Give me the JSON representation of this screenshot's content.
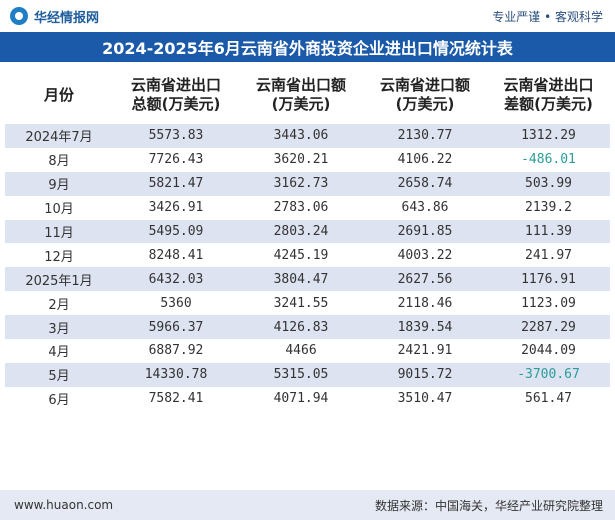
{
  "header": {
    "brand_name": "华经情报网",
    "slogan": "专业严谨 • 客观科学",
    "title": "2024-2025年6月云南省外商投资企业进出口情况统计表"
  },
  "table": {
    "columns": [
      "月份",
      "云南省进出口\n总额(万美元)",
      "云南省出口额\n(万美元)",
      "云南省进口额\n(万美元)",
      "云南省进出口\n差额(万美元)"
    ],
    "rows": [
      [
        "2024年7月",
        "5573.83",
        "3443.06",
        "2130.77",
        "1312.29"
      ],
      [
        "8月",
        "7726.43",
        "3620.21",
        "4106.22",
        "-486.01"
      ],
      [
        "9月",
        "5821.47",
        "3162.73",
        "2658.74",
        "503.99"
      ],
      [
        "10月",
        "3426.91",
        "2783.06",
        "643.86",
        "2139.2"
      ],
      [
        "11月",
        "5495.09",
        "2803.24",
        "2691.85",
        "111.39"
      ],
      [
        "12月",
        "8248.41",
        "4245.19",
        "4003.22",
        "241.97"
      ],
      [
        "2025年1月",
        "6432.03",
        "3804.47",
        "2627.56",
        "1176.91"
      ],
      [
        "2月",
        "5360",
        "3241.55",
        "2118.46",
        "1123.09"
      ],
      [
        "3月",
        "5966.37",
        "4126.83",
        "1839.54",
        "2287.29"
      ],
      [
        "4月",
        "6887.92",
        "4466",
        "2421.91",
        "2044.09"
      ],
      [
        "5月",
        "14330.78",
        "5315.05",
        "9015.72",
        "-3700.67"
      ],
      [
        "6月",
        "7582.41",
        "4071.94",
        "3510.47",
        "561.47"
      ]
    ]
  },
  "footer": {
    "url": "www.huaon.com",
    "source": "数据来源：中国海关，华经产业研究院整理"
  },
  "colors": {
    "title_band": "#1a5aa8",
    "row_stripe": "#dde3f0",
    "negative": "#2a9d9a"
  }
}
